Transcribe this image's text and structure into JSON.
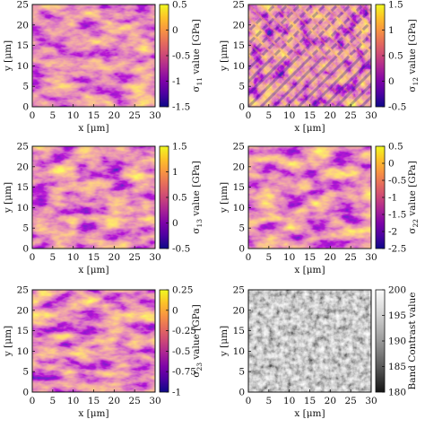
{
  "chart_data": [
    {
      "type": "heatmap",
      "title": "",
      "xlabel": "x [μm]",
      "ylabel": "y [μm]",
      "xlim": [
        0,
        30
      ],
      "ylim": [
        0,
        25
      ],
      "x_ticks": [
        "0",
        "5",
        "10",
        "15",
        "20",
        "25",
        "30"
      ],
      "y_ticks": [
        "0",
        "5",
        "10",
        "15",
        "20",
        "25"
      ],
      "colorbar": {
        "label_symbol": "σ",
        "label_subscript": "11",
        "label_rest": " value [GPa]",
        "range": [
          -1.5,
          0.5
        ],
        "ticks": [
          "0.5",
          "0",
          "-0.5",
          "-1",
          "-1.5"
        ],
        "colormap": "plasma"
      }
    },
    {
      "type": "heatmap",
      "title": "",
      "xlabel": "x [μm]",
      "ylabel": "y [μm]",
      "xlim": [
        0,
        30
      ],
      "ylim": [
        0,
        25
      ],
      "x_ticks": [
        "0",
        "5",
        "10",
        "15",
        "20",
        "25",
        "30"
      ],
      "y_ticks": [
        "0",
        "5",
        "10",
        "15",
        "20",
        "25"
      ],
      "colorbar": {
        "label_symbol": "σ",
        "label_subscript": "12",
        "label_rest": " value [GPa]",
        "range": [
          -0.5,
          1.5
        ],
        "ticks": [
          "1.5",
          "1",
          "0.5",
          "0",
          "-0.5"
        ],
        "colormap": "plasma"
      }
    },
    {
      "type": "heatmap",
      "title": "",
      "xlabel": "x [μm]",
      "ylabel": "y [μm]",
      "xlim": [
        0,
        30
      ],
      "ylim": [
        0,
        25
      ],
      "x_ticks": [
        "0",
        "5",
        "10",
        "15",
        "20",
        "25",
        "30"
      ],
      "y_ticks": [
        "0",
        "5",
        "10",
        "15",
        "20",
        "25"
      ],
      "colorbar": {
        "label_symbol": "σ",
        "label_subscript": "13",
        "label_rest": " value [GPa]",
        "range": [
          -0.5,
          1.5
        ],
        "ticks": [
          "1.5",
          "1",
          "0.5",
          "0",
          "-0.5"
        ],
        "colormap": "plasma"
      }
    },
    {
      "type": "heatmap",
      "title": "",
      "xlabel": "x [μm]",
      "ylabel": "y [μm]",
      "xlim": [
        0,
        30
      ],
      "ylim": [
        0,
        25
      ],
      "x_ticks": [
        "0",
        "5",
        "10",
        "15",
        "20",
        "25",
        "30"
      ],
      "y_ticks": [
        "0",
        "5",
        "10",
        "15",
        "20",
        "25"
      ],
      "colorbar": {
        "label_symbol": "σ",
        "label_subscript": "22",
        "label_rest": " value [GPa]",
        "range": [
          -2.5,
          0.5
        ],
        "ticks": [
          "0.5",
          "0",
          "-0.5",
          "-1",
          "-1.5",
          "-2",
          "-2.5"
        ],
        "colormap": "plasma"
      }
    },
    {
      "type": "heatmap",
      "title": "",
      "xlabel": "x [μm]",
      "ylabel": "y [μm]",
      "xlim": [
        0,
        30
      ],
      "ylim": [
        0,
        25
      ],
      "x_ticks": [
        "0",
        "5",
        "10",
        "15",
        "20",
        "25",
        "30"
      ],
      "y_ticks": [
        "0",
        "5",
        "10",
        "15",
        "20",
        "25"
      ],
      "colorbar": {
        "label_symbol": "σ",
        "label_subscript": "23",
        "label_rest": " value [GPa]",
        "range": [
          -1.0,
          0.25
        ],
        "ticks": [
          "0.25",
          "0",
          "-0.25",
          "-0.5",
          "-0.75",
          "-1"
        ],
        "colormap": "plasma"
      }
    },
    {
      "type": "heatmap",
      "title": "",
      "xlabel": "x [μm]",
      "ylabel": "y [μm]",
      "xlim": [
        0,
        30
      ],
      "ylim": [
        0,
        25
      ],
      "x_ticks": [
        "0",
        "5",
        "10",
        "15",
        "20",
        "25",
        "30"
      ],
      "y_ticks": [
        "0",
        "5",
        "10",
        "15",
        "20",
        "25"
      ],
      "colorbar": {
        "label_symbol": "",
        "label_subscript": "",
        "label_rest": "Band Contrast value",
        "range": [
          180,
          200
        ],
        "ticks": [
          "200",
          "195",
          "190",
          "185",
          "180"
        ],
        "colormap": "gray"
      }
    }
  ]
}
